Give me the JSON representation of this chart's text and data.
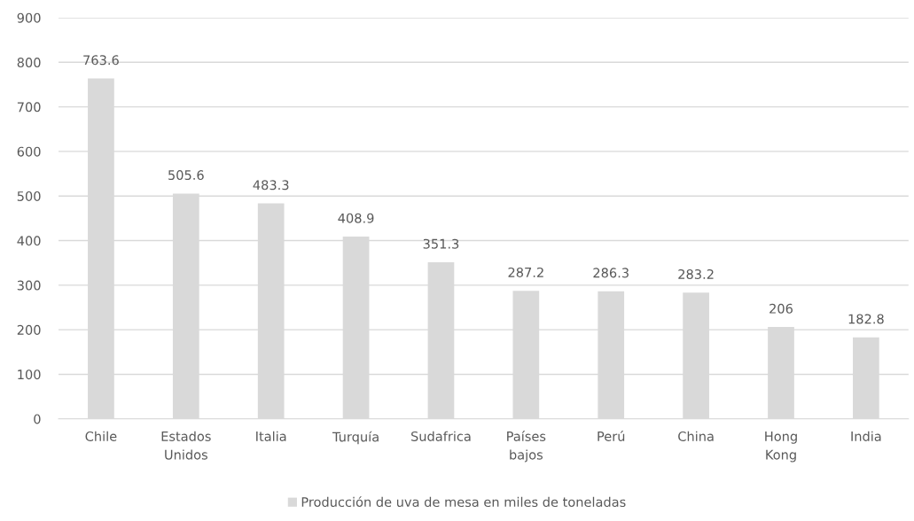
{
  "chart_data": {
    "type": "bar",
    "categories": [
      "Chile",
      "Estados Unidos",
      "Italia",
      "Turquía",
      "Sudafrica",
      "Países bajos",
      "Perú",
      "China",
      "Hong Kong",
      "India"
    ],
    "series": [
      {
        "name": "Producción de uva de mesa en miles de toneladas",
        "color": "#d9d9d9",
        "values": [
          763.6,
          505.6,
          483.3,
          408.9,
          351.3,
          287.2,
          286.3,
          283.2,
          206,
          182.8
        ]
      }
    ],
    "ylim": [
      0,
      900
    ],
    "yticks": [
      0,
      100,
      200,
      300,
      400,
      500,
      600,
      700,
      800,
      900
    ],
    "grid": "y",
    "legend": "bottom",
    "data_labels": true
  }
}
